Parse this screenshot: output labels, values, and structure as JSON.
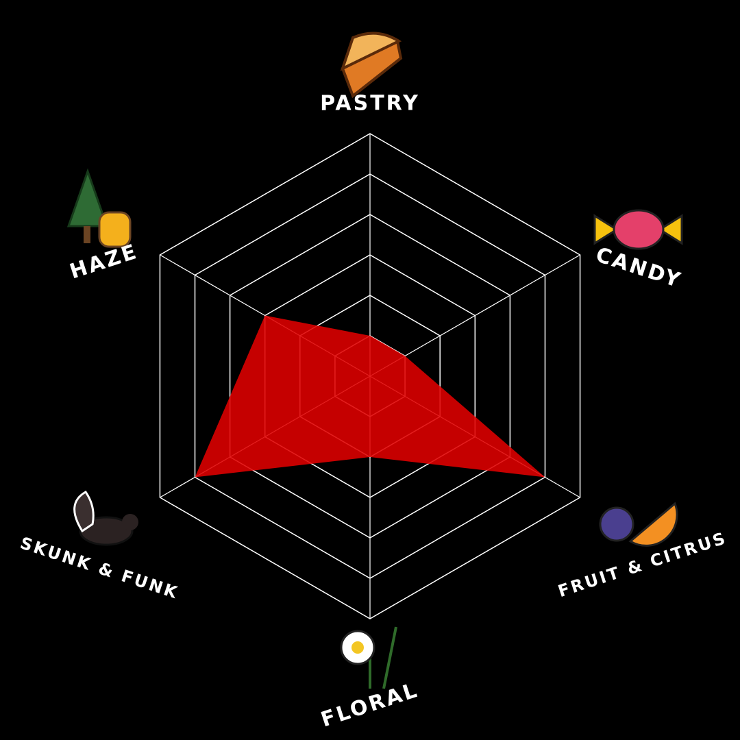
{
  "chart_data": {
    "type": "radar",
    "categories": [
      "PASTRY",
      "CANDY",
      "FRUIT & CITRUS",
      "FLORAL",
      "SKUNK & FUNK",
      "HAZE"
    ],
    "values": [
      1,
      1,
      5,
      2,
      5,
      3
    ],
    "color": "#e00000",
    "rlim": [
      0,
      6
    ],
    "rticks": [
      1,
      2,
      3,
      4,
      5,
      6
    ],
    "grid": true
  }
}
